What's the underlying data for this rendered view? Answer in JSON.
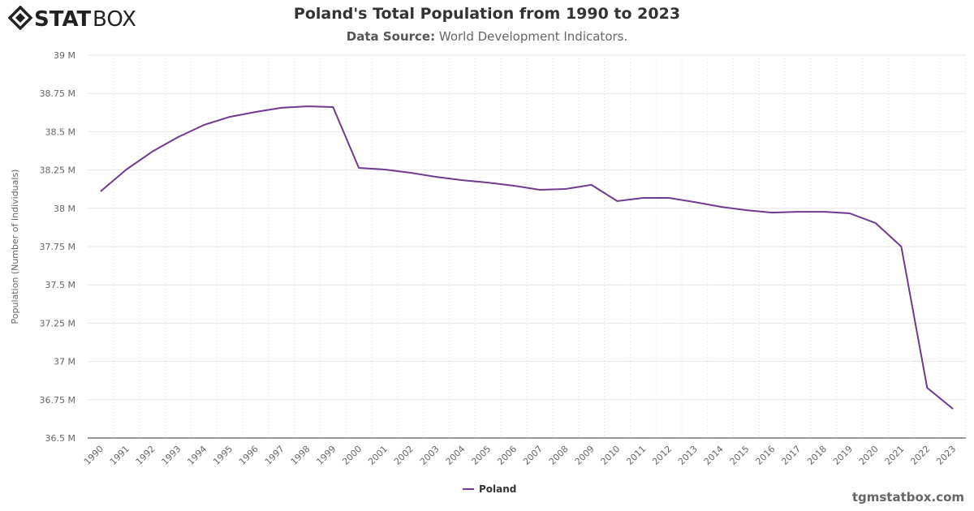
{
  "logo_text": "STATBOX",
  "chart_data": {
    "type": "line",
    "title": "Poland's Total Population from 1990 to 2023",
    "subtitle_label": "Data Source:",
    "subtitle_value": "World Development Indicators.",
    "xlabel": "",
    "ylabel": "Population (Number of Individuals)",
    "ylim": [
      36500000,
      39000000
    ],
    "yticks": [
      36500000,
      36750000,
      37000000,
      37250000,
      37500000,
      37750000,
      38000000,
      38250000,
      38500000,
      38750000,
      39000000
    ],
    "ytick_labels": [
      "36.5 M",
      "36.75 M",
      "37 M",
      "37.25 M",
      "37.5 M",
      "37.75 M",
      "38 M",
      "38.25 M",
      "38.5 M",
      "38.75 M",
      "39 M"
    ],
    "categories": [
      "1990",
      "1991",
      "1992",
      "1993",
      "1994",
      "1995",
      "1996",
      "1997",
      "1998",
      "1999",
      "2000",
      "2001",
      "2002",
      "2003",
      "2004",
      "2005",
      "2006",
      "2007",
      "2008",
      "2009",
      "2010",
      "2011",
      "2012",
      "2013",
      "2014",
      "2015",
      "2016",
      "2017",
      "2018",
      "2019",
      "2020",
      "2021",
      "2022",
      "2023"
    ],
    "series": [
      {
        "name": "Poland",
        "color": "#6f3a8f",
        "values": [
          38110000,
          38253000,
          38370000,
          38465000,
          38544000,
          38597000,
          38629000,
          38656000,
          38666000,
          38661000,
          38264000,
          38253000,
          38232000,
          38205000,
          38184000,
          38168000,
          38147000,
          38121000,
          38126000,
          38153000,
          38047000,
          38068000,
          38068000,
          38041000,
          38010000,
          37988000,
          37972000,
          37977000,
          37977000,
          37967000,
          37904000,
          37750000,
          36828000,
          36690000
        ]
      }
    ],
    "grid": true,
    "legend": "bottom-center"
  },
  "credit": "tgmstatbox.com"
}
